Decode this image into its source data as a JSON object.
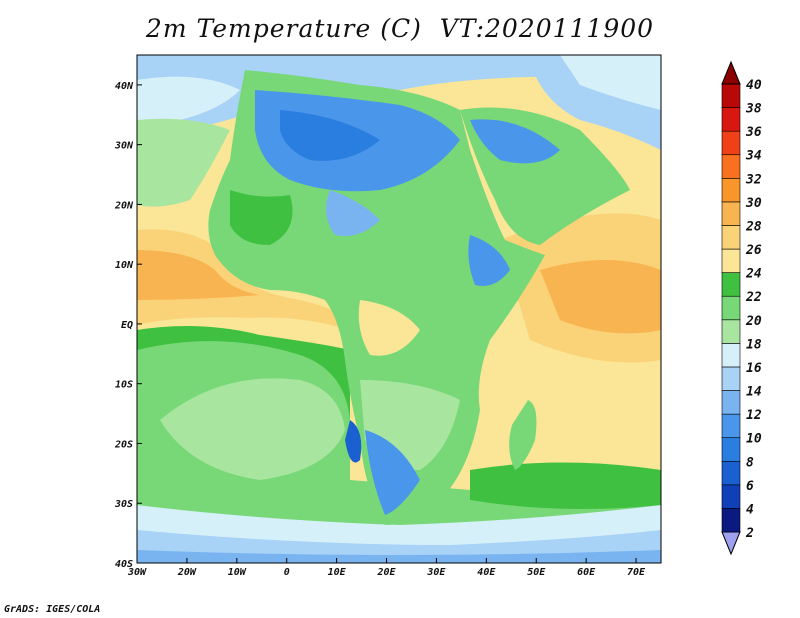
{
  "title": "2m Temperature (C)  VT:2020111900",
  "footer": "GrADS: IGES/COLA",
  "chart_data": {
    "type": "map",
    "variable": "2m Temperature",
    "units": "C",
    "valid_time": "2020111900",
    "lon_range": [
      -30,
      75
    ],
    "lat_range": [
      -40,
      45
    ],
    "lon_ticks": [
      "30W",
      "20W",
      "10W",
      "0",
      "10E",
      "20E",
      "30E",
      "40E",
      "50E",
      "60E",
      "70E"
    ],
    "lat_ticks": [
      "40S",
      "30S",
      "20S",
      "10S",
      "EQ",
      "10N",
      "20N",
      "30N",
      "40N"
    ],
    "colorbar": {
      "levels": [
        2,
        4,
        6,
        8,
        10,
        12,
        14,
        16,
        18,
        20,
        22,
        24,
        26,
        28,
        30,
        32,
        34,
        36,
        38,
        40
      ],
      "labels": [
        "2",
        "4",
        "6",
        "8",
        "10",
        "12",
        "14",
        "16",
        "18",
        "20",
        "22",
        "24",
        "26",
        "28",
        "30",
        "32",
        "34",
        "36",
        "38",
        "40"
      ],
      "colors": [
        "#a0a0f0",
        "#0a1a80",
        "#1040b8",
        "#1a60d0",
        "#2a7ee0",
        "#4a96ea",
        "#7ab4f0",
        "#a8d2f6",
        "#d6f0fa",
        "#a8e6a0",
        "#78d878",
        "#40c040",
        "#fae696",
        "#fad278",
        "#f8b450",
        "#f8962a",
        "#f87020",
        "#f04018",
        "#d81810",
        "#b80808",
        "#8c0000"
      ]
    }
  }
}
